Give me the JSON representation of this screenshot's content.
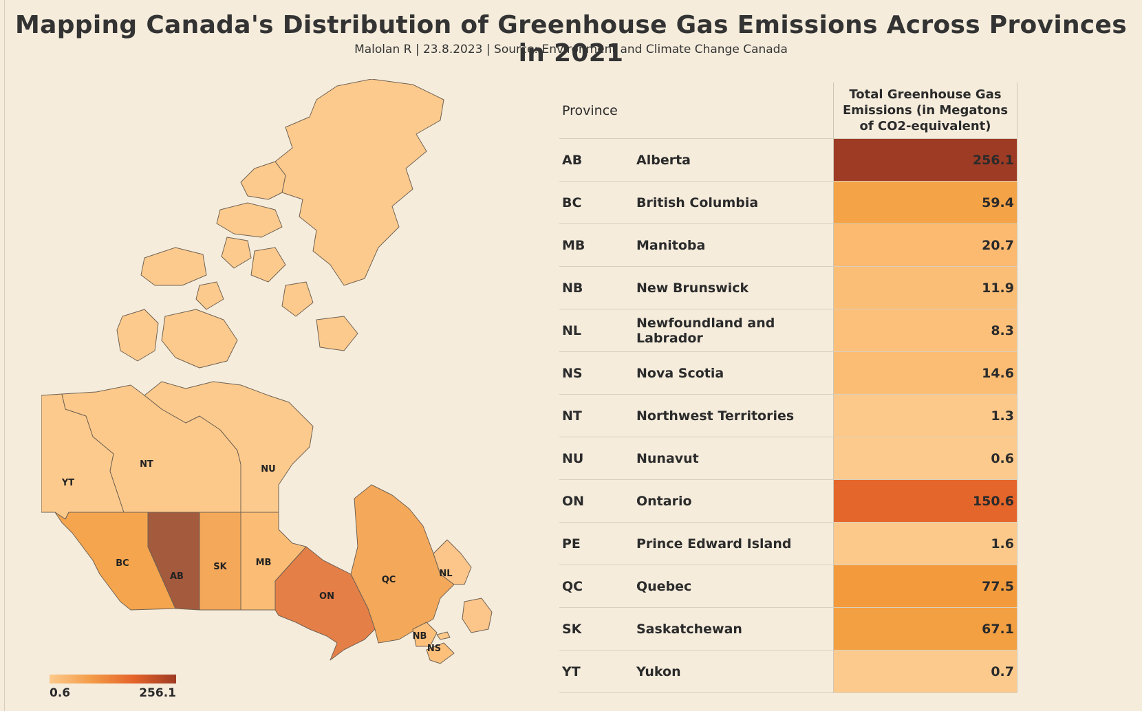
{
  "title": "Mapping Canada's Distribution of Greenhouse Gas Emissions Across Provinces in 2021",
  "subtitle": "Malolan R | 23.8.2023 | Source: Environment and Climate Change Canada",
  "legend": {
    "min_label": "0.6",
    "max_label": "256.1",
    "color_low": "#fcc98b",
    "color_high": "#9e3b24"
  },
  "table": {
    "header_province": "Province",
    "header_value": "Total Greenhouse Gas Emissions (in Megatons of CO2-equivalent)"
  },
  "chart_data": {
    "type": "table",
    "units": "Megatons of CO2-equivalent",
    "rows": [
      {
        "code": "AB",
        "name": "Alberta",
        "value": 256.1,
        "display": "256.1",
        "color": "#9e3b24"
      },
      {
        "code": "BC",
        "name": "British Columbia",
        "value": 59.4,
        "display": "59.4",
        "color": "#f4a347"
      },
      {
        "code": "MB",
        "name": "Manitoba",
        "value": 20.7,
        "display": "20.7",
        "color": "#fbba70"
      },
      {
        "code": "NB",
        "name": "New Brunswick",
        "value": 11.9,
        "display": "11.9",
        "color": "#fbbe77"
      },
      {
        "code": "NL",
        "name": "Newfoundland and Labrador",
        "value": 8.3,
        "display": "8.3",
        "color": "#fcc07b"
      },
      {
        "code": "NS",
        "name": "Nova Scotia",
        "value": 14.6,
        "display": "14.6",
        "color": "#fbbd74"
      },
      {
        "code": "NT",
        "name": "Northwest Territories",
        "value": 1.3,
        "display": "1.3",
        "color": "#fdc98b"
      },
      {
        "code": "NU",
        "name": "Nunavut",
        "value": 0.6,
        "display": "0.6",
        "color": "#fdca8d"
      },
      {
        "code": "ON",
        "name": "Ontario",
        "value": 150.6,
        "display": "150.6",
        "color": "#e5662a"
      },
      {
        "code": "PE",
        "name": "Prince Edward Island",
        "value": 1.6,
        "display": "1.6",
        "color": "#fdc98b"
      },
      {
        "code": "QC",
        "name": "Quebec",
        "value": 77.5,
        "display": "77.5",
        "color": "#f39b3c"
      },
      {
        "code": "SK",
        "name": "Saskatchewan",
        "value": 67.1,
        "display": "67.1",
        "color": "#f3a042"
      },
      {
        "code": "YT",
        "name": "Yukon",
        "value": 0.7,
        "display": "0.7",
        "color": "#fdca8d"
      }
    ]
  }
}
